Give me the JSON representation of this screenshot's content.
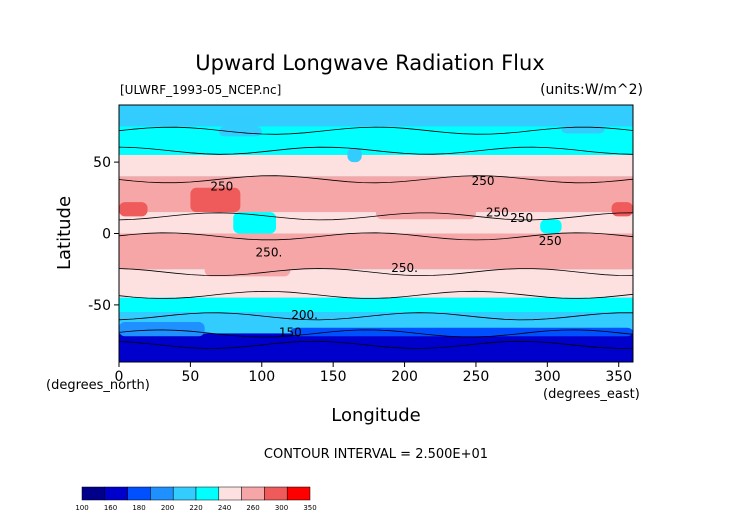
{
  "chart_data": {
    "type": "heatmap",
    "title": "Upward Longwave Radiation Flux",
    "subtitle_left": "[ULWRF_1993-05_NCEP.nc]",
    "subtitle_right": "(units:W/m^2)",
    "xlabel": "Longitude",
    "ylabel": "Latitude",
    "x_unit_label": "(degrees_east)",
    "y_unit_label": "(degrees_north)",
    "xlim": [
      0,
      360
    ],
    "ylim": [
      -90,
      90
    ],
    "x_ticks": [
      0,
      50,
      100,
      150,
      200,
      250,
      300,
      350
    ],
    "y_ticks": [
      50,
      0,
      -50
    ],
    "contour_interval_text": "CONTOUR INTERVAL = 2.500E+01",
    "contour_labels": [
      "250",
      "250",
      "250",
      "250",
      "250",
      "250.",
      "250.",
      "200.",
      "150"
    ],
    "colorbar_levels": [
      "100",
      "160",
      "180",
      "200",
      "220",
      "240",
      "260",
      "300",
      "350"
    ],
    "colorbar_colors": [
      "#00008b",
      "#0000cd",
      "#0050ff",
      "#1e90ff",
      "#33ccff",
      "#00ffff",
      "#fde0e0",
      "#f6a6a6",
      "#ef5a5a",
      "#ff0000"
    ],
    "fields": {
      "ocean_land_note": "",
      "bands": [
        {
          "lat_from": 90,
          "lat_to": 75,
          "value": 215
        },
        {
          "lat_from": 75,
          "lat_to": 55,
          "value": 235
        },
        {
          "lat_from": 55,
          "lat_to": 40,
          "value": 245
        },
        {
          "lat_from": 40,
          "lat_to": 15,
          "value": 265
        },
        {
          "lat_from": 15,
          "lat_to": 0,
          "value": 245
        },
        {
          "lat_from": 0,
          "lat_to": -25,
          "value": 265
        },
        {
          "lat_from": -25,
          "lat_to": -45,
          "value": 245
        },
        {
          "lat_from": -45,
          "lat_to": -55,
          "value": 225
        },
        {
          "lat_from": -55,
          "lat_to": -70,
          "value": 205
        },
        {
          "lat_from": -70,
          "lat_to": -90,
          "value": 150
        }
      ]
    },
    "grid": false
  }
}
